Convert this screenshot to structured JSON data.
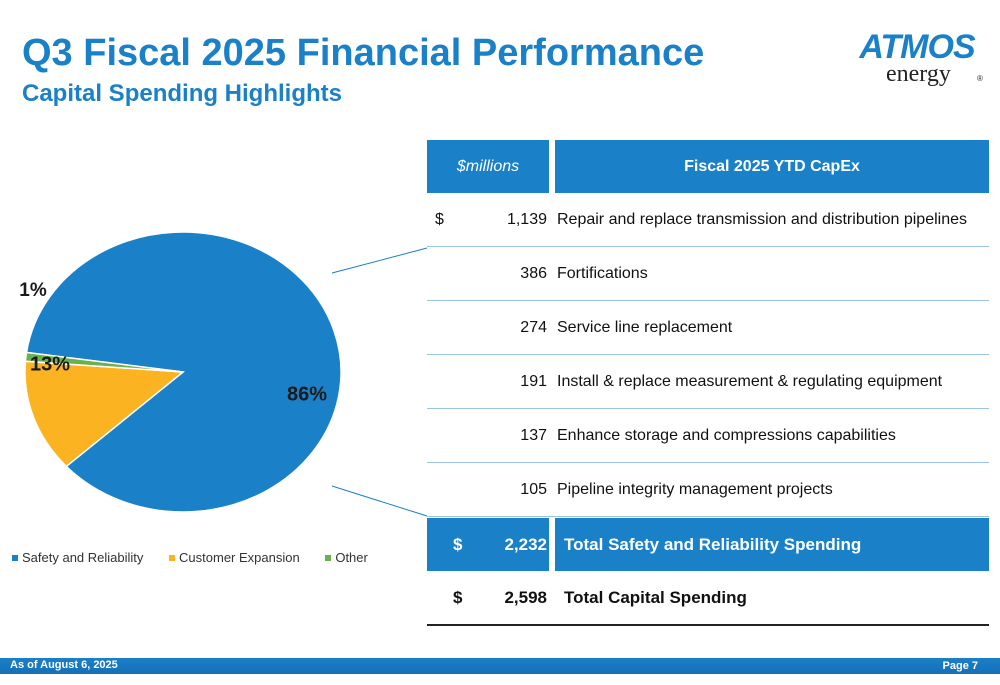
{
  "header": {
    "title": "Q3 Fiscal 2025 Financial Performance",
    "subtitle": "Capital Spending Highlights"
  },
  "logo": {
    "brand": "ATMOS",
    "sub": "energy",
    "reg": "®"
  },
  "chart_data": {
    "type": "pie",
    "slices": [
      {
        "name": "Safety and Reliability",
        "value": 86,
        "label": "86%",
        "color": "#1a80c8"
      },
      {
        "name": "Customer Expansion",
        "value": 13,
        "label": "13%",
        "color": "#fbb321"
      },
      {
        "name": "Other",
        "value": 1,
        "label": "1%",
        "color": "#6ab04c"
      }
    ],
    "legend": [
      "Safety and Reliability",
      "Customer Expansion",
      "Other"
    ],
    "legend_position": "bottom"
  },
  "table": {
    "header_left": "$millions",
    "header_right": "Fiscal 2025 YTD CapEx",
    "rows": [
      {
        "currency": "$",
        "amount": "1,139",
        "desc": "Repair and replace transmission and distribution pipelines"
      },
      {
        "currency": "",
        "amount": "386",
        "desc": "Fortifications"
      },
      {
        "currency": "",
        "amount": "274",
        "desc": "Service line replacement"
      },
      {
        "currency": "",
        "amount": "191",
        "desc": "Install & replace measurement & regulating equipment"
      },
      {
        "currency": "",
        "amount": "137",
        "desc": "Enhance storage and compressions capabilities"
      },
      {
        "currency": "",
        "amount": "105",
        "desc": "Pipeline integrity management projects"
      }
    ],
    "total_safety": {
      "currency": "$",
      "amount": "2,232",
      "desc": "Total Safety and Reliability Spending"
    },
    "total_capital": {
      "currency": "$",
      "amount": "2,598",
      "desc": "Total Capital Spending"
    }
  },
  "footer": {
    "date": "As of August 6, 2025",
    "page": "Page 7"
  },
  "colors": {
    "brand_blue": "#1a80c8",
    "orange": "#fbb321",
    "green": "#6ab04c"
  }
}
